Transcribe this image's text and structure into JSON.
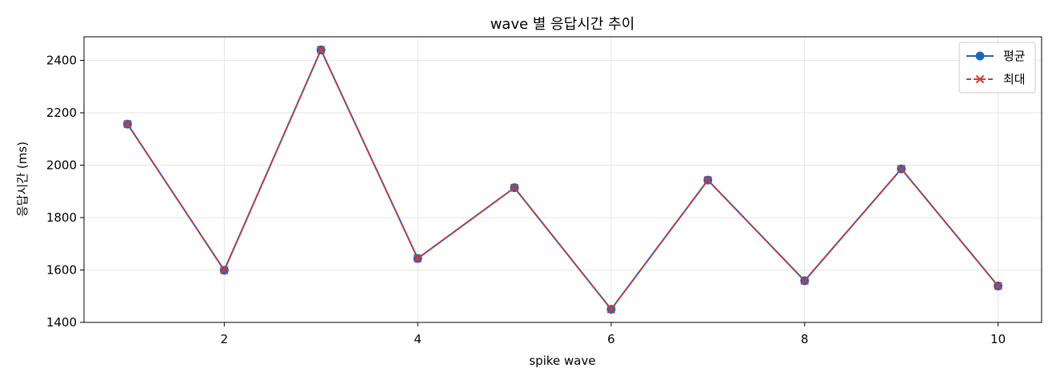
{
  "chart_data": {
    "type": "line",
    "title": "wave 별 응답시간 추이",
    "xlabel": "spike wave",
    "ylabel": "응답시간 (ms)",
    "x": [
      1,
      2,
      3,
      4,
      5,
      6,
      7,
      8,
      9,
      10
    ],
    "xlim": [
      0.55,
      10.45
    ],
    "ylim": [
      1400,
      2490
    ],
    "xticks": [
      2,
      4,
      6,
      8,
      10
    ],
    "yticks": [
      1400,
      1600,
      1800,
      2000,
      2200,
      2400
    ],
    "grid": true,
    "legend": "top-right",
    "series": [
      {
        "name": "평균",
        "values": [
          2157,
          1599,
          2440,
          1644,
          1914,
          1450,
          1943,
          1559,
          1986,
          1539
        ],
        "color": "#1f66b8",
        "marker": "circle",
        "line_style": "solid"
      },
      {
        "name": "최대",
        "values": [
          2157,
          1599,
          2440,
          1644,
          1914,
          1450,
          1943,
          1559,
          1986,
          1539
        ],
        "color": "#d13a3a",
        "marker": "x",
        "line_style": "dashed"
      }
    ]
  }
}
